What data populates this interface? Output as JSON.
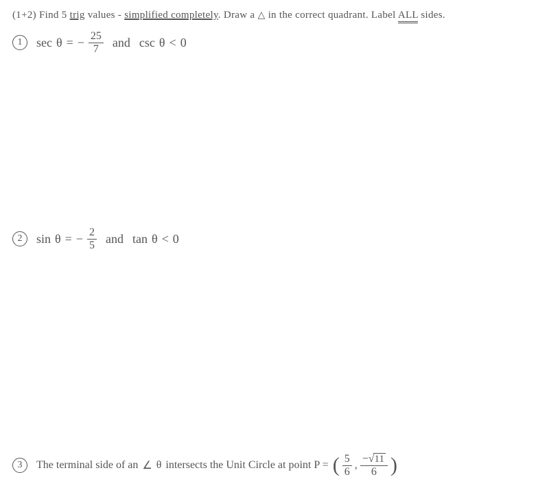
{
  "header": {
    "prefix": "(1+2) Find 5 ",
    "trig": "trig",
    "mid1": " values - ",
    "simplified": "simplified completely",
    "mid2": ". Draw a ",
    "triangle": "△",
    "mid3": " in the correct quadrant. Label ",
    "all": "ALL",
    "suffix": " sides."
  },
  "p1": {
    "num": "1",
    "func1": "sec",
    "theta1": "θ",
    "eq": "=",
    "neg": "−",
    "frac_num": "25",
    "frac_den": "7",
    "and": "and",
    "func2": "csc",
    "theta2": "θ",
    "lt": "<",
    "zero": "0"
  },
  "p2": {
    "num": "2",
    "func1": "sin",
    "theta1": "θ",
    "eq": "=",
    "neg": "−",
    "frac_num": "2",
    "frac_den": "5",
    "and": "and",
    "func2": "tan",
    "theta2": "θ",
    "lt": "<",
    "zero": "0"
  },
  "p3": {
    "num": "3",
    "text1": "The terminal side of an ",
    "angle": "∠",
    "theta": "θ",
    "text2": " intersects the Unit Circle at point P = ",
    "f1_num": "5",
    "f1_den": "6",
    "comma": ",",
    "neg": "−",
    "sqrt_arg": "11",
    "f2_den": "6"
  },
  "colors": {
    "text": "#555555",
    "background": "#ffffff"
  }
}
